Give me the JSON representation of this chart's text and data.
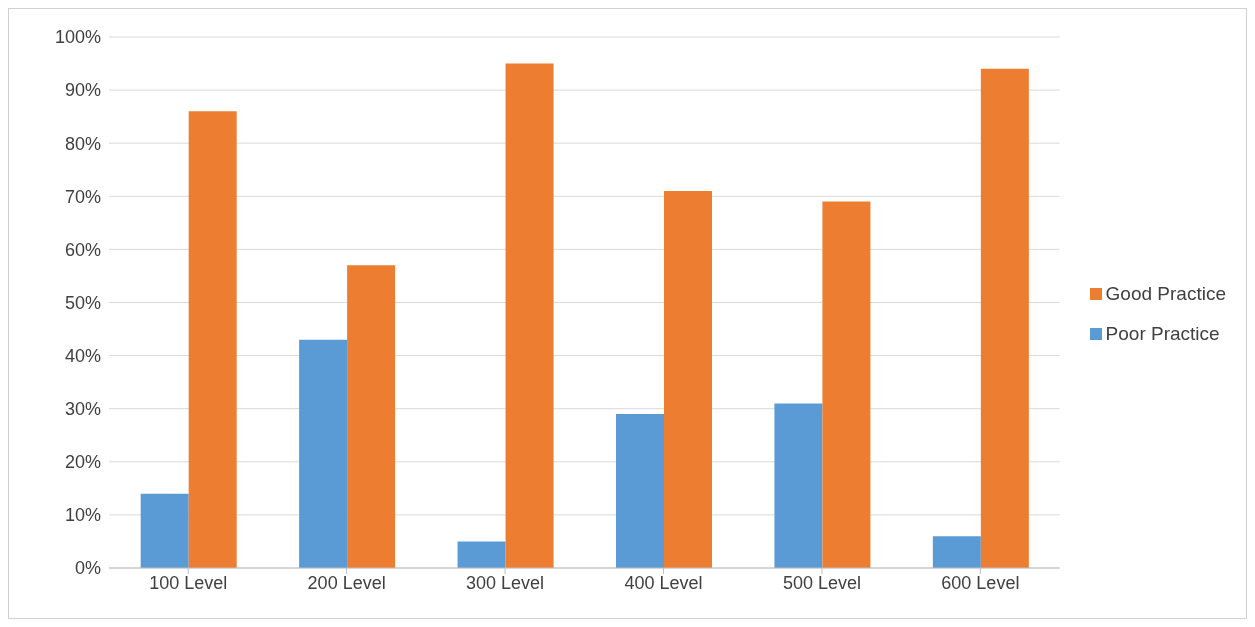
{
  "chart_data": {
    "type": "bar",
    "categories": [
      "100 Level",
      "200 Level",
      "300 Level",
      "400 Level",
      "500 Level",
      "600 Level"
    ],
    "series": [
      {
        "name": "Poor Practice",
        "color": "#5b9bd5",
        "values": [
          14,
          43,
          5,
          29,
          31,
          6
        ]
      },
      {
        "name": "Good Practice",
        "color": "#ed7d31",
        "values": [
          86,
          57,
          95,
          71,
          69,
          94
        ]
      }
    ],
    "ylim": [
      0,
      100
    ],
    "yticks": [
      {
        "value": 0,
        "label": "0%"
      },
      {
        "value": 10,
        "label": "10%"
      },
      {
        "value": 20,
        "label": "20%"
      },
      {
        "value": 30,
        "label": "30%"
      },
      {
        "value": 40,
        "label": "40%"
      },
      {
        "value": 50,
        "label": "50%"
      },
      {
        "value": 60,
        "label": "60%"
      },
      {
        "value": 70,
        "label": "70%"
      },
      {
        "value": 80,
        "label": "80%"
      },
      {
        "value": 90,
        "label": "90%"
      },
      {
        "value": 100,
        "label": "100%"
      }
    ],
    "grid": "y",
    "legend": "right"
  }
}
